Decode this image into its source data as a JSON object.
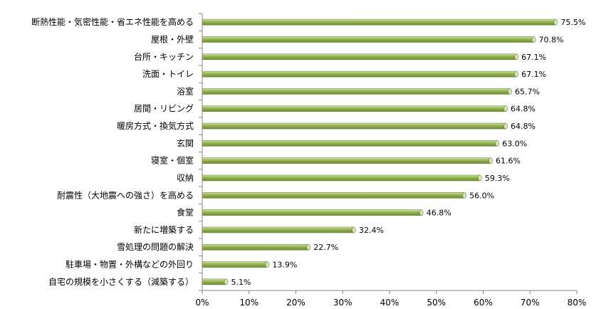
{
  "chart_data": {
    "type": "bar",
    "orientation": "horizontal",
    "categories": [
      "断熱性能・気密性能・省エネ性能を高める",
      "屋根・外壁",
      "台所・キッチン",
      "洗面・トイレ",
      "浴室",
      "居間・リビング",
      "暖房方式・換気方式",
      "玄関",
      "寝室・個室",
      "収納",
      "耐震性（大地震への強さ）を高める",
      "食堂",
      "新たに増築する",
      "雪処理の問題の解決",
      "駐車場・物置・外構などの外回り",
      "自宅の規模を小さくする（減築する）"
    ],
    "values": [
      75.5,
      70.8,
      67.1,
      67.1,
      65.7,
      64.8,
      64.8,
      63.0,
      61.6,
      59.3,
      56.0,
      46.8,
      32.4,
      22.7,
      13.9,
      5.1
    ],
    "value_labels": [
      "75.5%",
      "70.8%",
      "67.1%",
      "67.1%",
      "65.7%",
      "64.8%",
      "64.8%",
      "63.0%",
      "61.6%",
      "59.3%",
      "56.0%",
      "46.8%",
      "32.4%",
      "22.7%",
      "13.9%",
      "5.1%"
    ],
    "xlim": [
      0,
      80
    ],
    "xticks": [
      0,
      10,
      20,
      30,
      40,
      50,
      60,
      70,
      80
    ],
    "xtick_labels": [
      "0%",
      "10%",
      "20%",
      "30%",
      "40%",
      "50%",
      "60%",
      "70%",
      "80%"
    ],
    "grid": false,
    "legend": "none",
    "bar_color": "#9bbb59",
    "bar_highlight_color": "#d7e4bd",
    "bar_edge_color": "#6f8a35"
  }
}
